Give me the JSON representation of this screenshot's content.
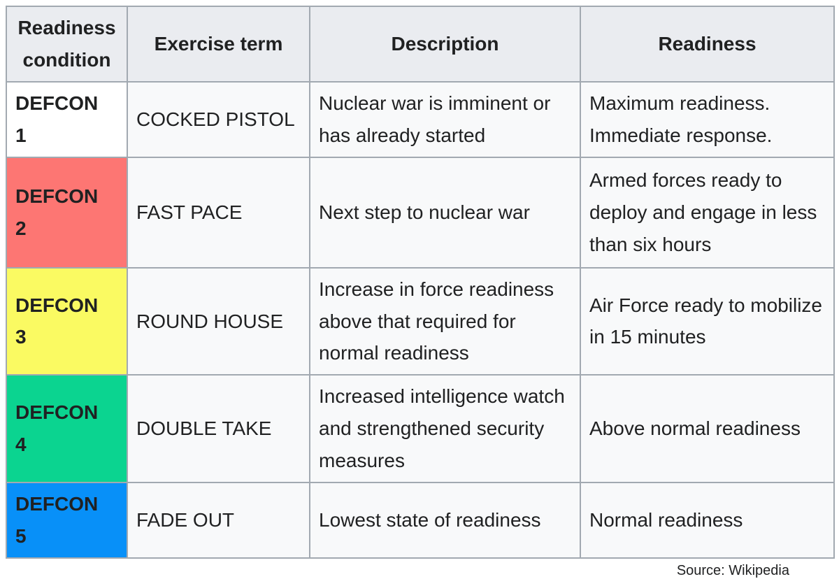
{
  "colors": {
    "header_bg": "#eaecf0",
    "cell_bg": "#f8f9fa",
    "border": "#a2a9b1",
    "text": "#202122"
  },
  "table": {
    "headers": {
      "condition": "Readiness condition",
      "exercise_term": "Exercise term",
      "description": "Description",
      "readiness": "Readiness"
    },
    "rows": [
      {
        "condition": "DEFCON 1",
        "condition_color": "#ffffff",
        "exercise_term": "COCKED PISTOL",
        "description": "Nuclear war is imminent or has already started",
        "readiness": "Maximum readiness. Immediate response."
      },
      {
        "condition": "DEFCON 2",
        "condition_color": "#fd7673",
        "exercise_term": "FAST PACE",
        "description": "Next step to nuclear war",
        "readiness": "Armed forces ready to deploy and engage in less than six hours"
      },
      {
        "condition": "DEFCON 3",
        "condition_color": "#fafa62",
        "exercise_term": "ROUND HOUSE",
        "description": "Increase in force readiness above that required for normal readiness",
        "readiness": "Air Force ready to mobilize in 15 minutes"
      },
      {
        "condition": "DEFCON 4",
        "condition_color": "#0bd490",
        "exercise_term": "DOUBLE TAKE",
        "description": "Increased intelligence watch and strengthened security measures",
        "readiness": "Above normal readiness"
      },
      {
        "condition": "DEFCON 5",
        "condition_color": "#0890f8",
        "exercise_term": "FADE OUT",
        "description": "Lowest state of readiness",
        "readiness": "Normal readiness"
      }
    ]
  },
  "source": "Source: Wikipedia"
}
